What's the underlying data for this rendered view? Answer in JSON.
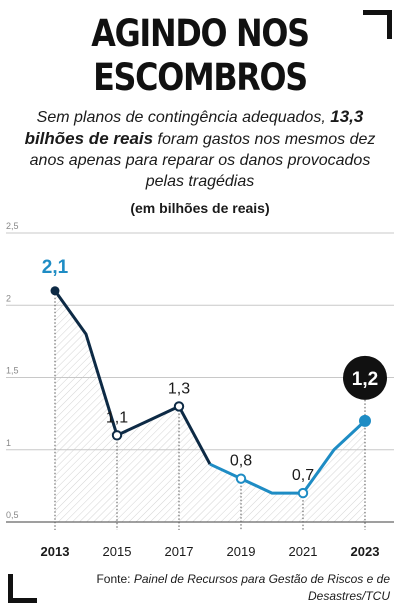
{
  "header": {
    "title_line1": "AGINDO NOS",
    "title_line2": "ESCOMBROS",
    "subtitle_pre": "Sem planos de contingência adequados,",
    "subtitle_bold": "13,3 bilhões de reais",
    "subtitle_post": "foram gastos nos mesmos dez anos apenas para reparar os danos provocados pelas tragédias",
    "unit": "(em bilhões de reais)"
  },
  "source": {
    "prefix": "Fonte:",
    "text": "Painel de Recursos para Gestão de Riscos e de Desastres/TCU"
  },
  "colors": {
    "dark_line": "#0d2a45",
    "light_line": "#1e8cc4",
    "start_label": "#1e8cc4",
    "end_bubble": "#111111"
  },
  "chart_data": {
    "type": "line",
    "x": [
      2013,
      2014,
      2015,
      2016,
      2017,
      2018,
      2019,
      2020,
      2021,
      2022,
      2023
    ],
    "values": [
      2.1,
      1.8,
      1.1,
      1.2,
      1.3,
      0.9,
      0.8,
      0.7,
      0.7,
      1.0,
      1.2
    ],
    "ylim": [
      0.5,
      2.5
    ],
    "yticks": [
      0.5,
      1,
      1.5,
      2,
      2.5
    ],
    "ytick_labels": [
      "0,5",
      "1",
      "1,5",
      "2",
      "2,5"
    ],
    "xticks": [
      2013,
      2015,
      2017,
      2019,
      2021,
      2023
    ],
    "xtick_labels": [
      "2013",
      "2015",
      "2017",
      "2019",
      "2021",
      "2023"
    ],
    "data_labels": [
      {
        "x": 2013,
        "label": "2,1"
      },
      {
        "x": 2015,
        "label": "1,1"
      },
      {
        "x": 2017,
        "label": "1,3"
      },
      {
        "x": 2019,
        "label": "0,8"
      },
      {
        "x": 2021,
        "label": "0,7"
      },
      {
        "x": 2023,
        "label": "1,2"
      }
    ],
    "grid": "horizontal"
  }
}
